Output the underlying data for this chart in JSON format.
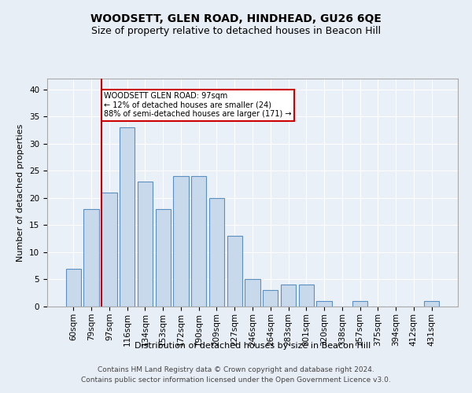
{
  "title": "WOODSETT, GLEN ROAD, HINDHEAD, GU26 6QE",
  "subtitle": "Size of property relative to detached houses in Beacon Hill",
  "xlabel": "Distribution of detached houses by size in Beacon Hill",
  "ylabel": "Number of detached properties",
  "categories": [
    "60sqm",
    "79sqm",
    "97sqm",
    "116sqm",
    "134sqm",
    "153sqm",
    "172sqm",
    "190sqm",
    "209sqm",
    "227sqm",
    "246sqm",
    "264sqm",
    "283sqm",
    "301sqm",
    "320sqm",
    "338sqm",
    "357sqm",
    "375sqm",
    "394sqm",
    "412sqm",
    "431sqm"
  ],
  "values": [
    7,
    18,
    21,
    33,
    23,
    18,
    24,
    24,
    20,
    13,
    5,
    3,
    4,
    4,
    1,
    0,
    1,
    0,
    0,
    0,
    1
  ],
  "bar_color": "#c9d9ec",
  "bar_edge_color": "#5a8fc0",
  "highlight_index": 2,
  "highlight_line_color": "#cc0000",
  "ylim": [
    0,
    42
  ],
  "yticks": [
    0,
    5,
    10,
    15,
    20,
    25,
    30,
    35,
    40
  ],
  "annotation_text": "WOODSETT GLEN ROAD: 97sqm\n← 12% of detached houses are smaller (24)\n88% of semi-detached houses are larger (171) →",
  "annotation_box_color": "#ffffff",
  "annotation_box_edge_color": "#cc0000",
  "footer_line1": "Contains HM Land Registry data © Crown copyright and database right 2024.",
  "footer_line2": "Contains public sector information licensed under the Open Government Licence v3.0.",
  "background_color": "#e8eef5",
  "plot_background_color": "#eaf0f8",
  "grid_color": "#ffffff",
  "title_fontsize": 10,
  "subtitle_fontsize": 9,
  "label_fontsize": 8,
  "tick_fontsize": 7.5,
  "footer_fontsize": 6.5
}
